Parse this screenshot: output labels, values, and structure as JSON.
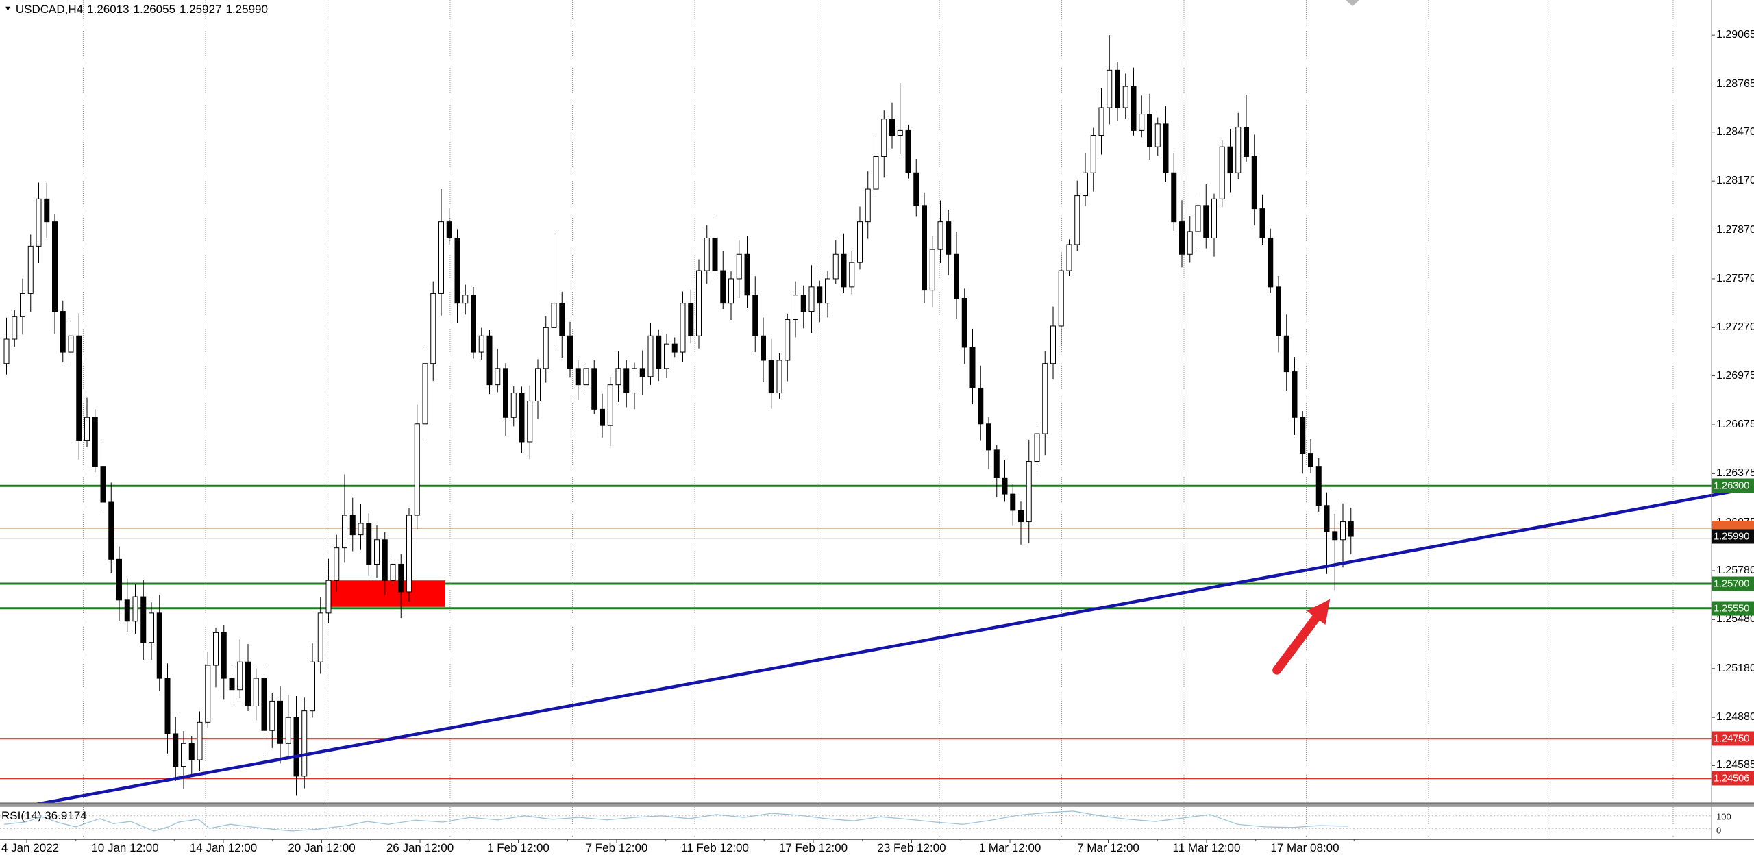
{
  "header": {
    "dropdown_icon": "▼",
    "symbol": "USDCAD,H4",
    "open": "1.26013",
    "high": "1.26055",
    "low": "1.25927",
    "close": "1.25990"
  },
  "colors": {
    "green_line": "#1e7d1e",
    "green_label_bg": "#267e26",
    "red_line": "#e03131",
    "red_label_bg": "#e12b2b",
    "black_label_bg": "#0a0a0a",
    "ask_label_bg": "#e8632a",
    "rect": "#fe0000",
    "trendline": "#1414a8",
    "ask_line": "#e8824a",
    "bid_line": "#c9c9c9",
    "arrow": "#e8252a",
    "rsi_line": "#9dc3d9",
    "grid": "#999999",
    "separator": "#9a9a9a",
    "shift_marker": "#b9b9b9",
    "candle_up_fill": "#ffffff",
    "candle_down_fill": "#000000",
    "candle_stroke": "#000000"
  },
  "price_axis": {
    "ticks": [
      "1.29065",
      "1.28765",
      "1.28470",
      "1.28170",
      "1.27870",
      "1.27570",
      "1.27270",
      "1.26975",
      "1.26675",
      "1.26375",
      "1.26075",
      "1.25780",
      "1.25480",
      "1.25180",
      "1.24880",
      "1.24585"
    ]
  },
  "time_axis": {
    "labels": [
      "4 Jan 2022",
      "10 Jan 12:00",
      "14 Jan 12:00",
      "20 Jan 12:00",
      "26 Jan 12:00",
      "1 Feb 12:00",
      "7 Feb 12:00",
      "11 Feb 12:00",
      "17 Feb 12:00",
      "23 Feb 12:00",
      "1 Mar 12:00",
      "7 Mar 12:00",
      "11 Mar 12:00",
      "17 Mar 08:00"
    ]
  },
  "axis_badges": [
    {
      "text": "1.26300",
      "price": 1.263,
      "bg": "green"
    },
    {
      "text": "1.25990",
      "price": 1.2599,
      "bg": "black"
    },
    {
      "text": "1.25700",
      "price": 1.257,
      "bg": "green"
    },
    {
      "text": "1.25550",
      "price": 1.2555,
      "bg": "green"
    },
    {
      "text": "1.24750",
      "price": 1.2475,
      "bg": "red"
    },
    {
      "text": "1.24506",
      "price": 1.24506,
      "bg": "red"
    }
  ],
  "ask_badge": {
    "price": 1.2604
  },
  "rsi": {
    "label": "RSI(14) 36.9174",
    "value": 36.9174,
    "scale_top": "100",
    "scale_bottom": "0",
    "levels": [
      70,
      30
    ],
    "points": [
      [
        0,
        43
      ],
      [
        2.6,
        50
      ],
      [
        4.7,
        67
      ],
      [
        6.8,
        48
      ],
      [
        8.9,
        35
      ],
      [
        11.9,
        61
      ],
      [
        13.6,
        45
      ],
      [
        15.7,
        52
      ],
      [
        18.6,
        22
      ],
      [
        20.4,
        35
      ],
      [
        21.7,
        50
      ],
      [
        24.1,
        59
      ],
      [
        25.5,
        30
      ],
      [
        28.1,
        43
      ],
      [
        30.6,
        35
      ],
      [
        33.2,
        28
      ],
      [
        35.7,
        22
      ],
      [
        39.1,
        28
      ],
      [
        42.6,
        39
      ],
      [
        45.1,
        52
      ],
      [
        47.7,
        43
      ],
      [
        51.1,
        56
      ],
      [
        54.5,
        50
      ],
      [
        57.9,
        65
      ],
      [
        61.3,
        57
      ],
      [
        64.7,
        70
      ],
      [
        68.1,
        59
      ],
      [
        71.5,
        65
      ],
      [
        74.9,
        57
      ],
      [
        78.3,
        65
      ],
      [
        81.7,
        70
      ],
      [
        85.1,
        61
      ],
      [
        88.5,
        74
      ],
      [
        91.9,
        65
      ],
      [
        95.3,
        78
      ],
      [
        98.7,
        72
      ],
      [
        102.1,
        61
      ],
      [
        105.5,
        54
      ],
      [
        108.9,
        67
      ],
      [
        112.3,
        59
      ],
      [
        115.7,
        50
      ],
      [
        119.1,
        43
      ],
      [
        122.6,
        56
      ],
      [
        126,
        72
      ],
      [
        129.4,
        80
      ],
      [
        132.8,
        85
      ],
      [
        136.2,
        70
      ],
      [
        139.6,
        59
      ],
      [
        143,
        52
      ],
      [
        146.4,
        63
      ],
      [
        149.8,
        74
      ],
      [
        153.2,
        43
      ],
      [
        156.6,
        35
      ],
      [
        160,
        33
      ],
      [
        163.4,
        39
      ],
      [
        167,
        37
      ]
    ]
  },
  "chart_data": {
    "type": "candlestick",
    "title": "USDCAD,H4",
    "symbol": "USDCAD",
    "timeframe": "H4",
    "current_ohlc": {
      "open": 1.26013,
      "high": 1.26055,
      "low": 1.25927,
      "close": 1.2599
    },
    "x_tick_labels": [
      "4 Jan 2022",
      "10 Jan 12:00",
      "14 Jan 12:00",
      "20 Jan 12:00",
      "26 Jan 12:00",
      "1 Feb 12:00",
      "7 Feb 12:00",
      "11 Feb 12:00",
      "17 Feb 12:00",
      "23 Feb 12:00",
      "1 Mar 12:00",
      "7 Mar 12:00",
      "11 Mar 12:00",
      "17 Mar 08:00"
    ],
    "y_axis_ticks": [
      1.29065,
      1.28765,
      1.2847,
      1.2817,
      1.2787,
      1.2757,
      1.2727,
      1.26975,
      1.26675,
      1.26375,
      1.26075,
      1.2578,
      1.2548,
      1.2518,
      1.2488,
      1.24585
    ],
    "ylim": [
      1.2433,
      1.2925
    ],
    "grid": "vertical-dotted",
    "horizontal_levels": [
      {
        "price": 1.263,
        "color": "green",
        "width": 3
      },
      {
        "price": 1.257,
        "color": "green",
        "width": 3
      },
      {
        "price": 1.2555,
        "color": "green",
        "width": 3
      },
      {
        "price": 1.2475,
        "color": "red",
        "width": 2
      },
      {
        "price": 1.24506,
        "color": "red",
        "width": 2
      }
    ],
    "ask_line_price": 1.2604,
    "bid_line_price": 1.2599,
    "trendline": {
      "shape": "rising-support",
      "start": {
        "x_frac": 0.0195,
        "price": 1.24345
      },
      "end": {
        "x_frac": 1.0,
        "price": 1.2629
      }
    },
    "supply_zone_rect": {
      "bar_start": 40.6,
      "bar_end": 54.8,
      "price_top": 1.2572,
      "price_bottom": 1.25558
    },
    "arrow_annotation": {
      "tail": {
        "bar": 158.1,
        "price": 1.2517
      },
      "head": {
        "bar": 164.7,
        "price": 1.25605
      }
    },
    "shift_marker_bar": 167.5,
    "candles": {
      "count": 168,
      "first_open": 1.2705,
      "last_close": 1.2599,
      "close_waypoints": [
        [
          0,
          1.272
        ],
        [
          2,
          1.2748
        ],
        [
          4,
          1.2806
        ],
        [
          5,
          1.2792
        ],
        [
          6,
          1.2737
        ],
        [
          7,
          1.2712
        ],
        [
          8,
          1.2722
        ],
        [
          9,
          1.2658
        ],
        [
          10,
          1.2672
        ],
        [
          11,
          1.2642
        ],
        [
          12,
          1.262
        ],
        [
          13,
          1.2585
        ],
        [
          14,
          1.256
        ],
        [
          15,
          1.2547
        ],
        [
          16,
          1.2562
        ],
        [
          17,
          1.2534
        ],
        [
          18,
          1.2552
        ],
        [
          19,
          1.2512
        ],
        [
          20,
          1.2478
        ],
        [
          21,
          1.2458
        ],
        [
          22,
          1.2472
        ],
        [
          23,
          1.2462
        ],
        [
          24,
          1.2485
        ],
        [
          25,
          1.252
        ],
        [
          26,
          1.254
        ],
        [
          27,
          1.2512
        ],
        [
          28,
          1.2505
        ],
        [
          29,
          1.2522
        ],
        [
          30,
          1.2495
        ],
        [
          31,
          1.2512
        ],
        [
          32,
          1.248
        ],
        [
          33,
          1.2498
        ],
        [
          34,
          1.2472
        ],
        [
          35,
          1.2488
        ],
        [
          36,
          1.2452
        ],
        [
          37,
          1.2492
        ],
        [
          38,
          1.2522
        ],
        [
          39,
          1.2552
        ],
        [
          40,
          1.2572
        ],
        [
          41,
          1.2592
        ],
        [
          42,
          1.2612
        ],
        [
          43,
          1.26
        ],
        [
          44,
          1.2607
        ],
        [
          45,
          1.2582
        ],
        [
          46,
          1.2597
        ],
        [
          47,
          1.2572
        ],
        [
          48,
          1.2582
        ],
        [
          49,
          1.2565
        ],
        [
          50,
          1.2612
        ],
        [
          51,
          1.2668
        ],
        [
          52,
          1.2705
        ],
        [
          53,
          1.2748
        ],
        [
          54,
          1.2792
        ],
        [
          55,
          1.2782
        ],
        [
          56,
          1.2742
        ],
        [
          57,
          1.2747
        ],
        [
          58,
          1.2712
        ],
        [
          59,
          1.2722
        ],
        [
          60,
          1.2692
        ],
        [
          61,
          1.2702
        ],
        [
          62,
          1.2672
        ],
        [
          63,
          1.2687
        ],
        [
          64,
          1.2657
        ],
        [
          65,
          1.2682
        ],
        [
          66,
          1.2702
        ],
        [
          67,
          1.2727
        ],
        [
          68,
          1.2742
        ],
        [
          69,
          1.2722
        ],
        [
          70,
          1.2702
        ],
        [
          71,
          1.2692
        ],
        [
          72,
          1.2702
        ],
        [
          73,
          1.2677
        ],
        [
          74,
          1.2667
        ],
        [
          75,
          1.2692
        ],
        [
          76,
          1.2702
        ],
        [
          77,
          1.2687
        ],
        [
          78,
          1.2702
        ],
        [
          79,
          1.2697
        ],
        [
          80,
          1.2722
        ],
        [
          81,
          1.2702
        ],
        [
          82,
          1.2717
        ],
        [
          83,
          1.2712
        ],
        [
          84,
          1.2742
        ],
        [
          85,
          1.2722
        ],
        [
          86,
          1.2762
        ],
        [
          87,
          1.2782
        ],
        [
          88,
          1.2762
        ],
        [
          89,
          1.2742
        ],
        [
          90,
          1.2757
        ],
        [
          91,
          1.2772
        ],
        [
          92,
          1.2747
        ],
        [
          93,
          1.2722
        ],
        [
          94,
          1.2707
        ],
        [
          95,
          1.2687
        ],
        [
          96,
          1.2707
        ],
        [
          97,
          1.2732
        ],
        [
          98,
          1.2747
        ],
        [
          99,
          1.2737
        ],
        [
          100,
          1.2752
        ],
        [
          101,
          1.2742
        ],
        [
          102,
          1.2757
        ],
        [
          103,
          1.2772
        ],
        [
          104,
          1.2752
        ],
        [
          105,
          1.2767
        ],
        [
          106,
          1.2792
        ],
        [
          107,
          1.2812
        ],
        [
          108,
          1.2832
        ],
        [
          109,
          1.2855
        ],
        [
          110,
          1.2845
        ],
        [
          111,
          1.2848
        ],
        [
          112,
          1.2822
        ],
        [
          113,
          1.2802
        ],
        [
          114,
          1.275
        ],
        [
          115,
          1.2775
        ],
        [
          116,
          1.2792
        ],
        [
          117,
          1.2772
        ],
        [
          118,
          1.2745
        ],
        [
          119,
          1.2715
        ],
        [
          120,
          1.269
        ],
        [
          121,
          1.2668
        ],
        [
          122,
          1.2652
        ],
        [
          123,
          1.2635
        ],
        [
          124,
          1.2625
        ],
        [
          125,
          1.2615
        ],
        [
          126,
          1.2608
        ],
        [
          127,
          1.2645
        ],
        [
          128,
          1.2662
        ],
        [
          129,
          1.2705
        ],
        [
          130,
          1.2728
        ],
        [
          131,
          1.2762
        ],
        [
          132,
          1.2778
        ],
        [
          133,
          1.2808
        ],
        [
          134,
          1.2822
        ],
        [
          135,
          1.2845
        ],
        [
          136,
          1.2862
        ],
        [
          137,
          1.2885
        ],
        [
          138,
          1.2862
        ],
        [
          139,
          1.2875
        ],
        [
          140,
          1.2848
        ],
        [
          141,
          1.2858
        ],
        [
          142,
          1.2838
        ],
        [
          143,
          1.2852
        ],
        [
          144,
          1.2822
        ],
        [
          145,
          1.2792
        ],
        [
          146,
          1.2772
        ],
        [
          147,
          1.2786
        ],
        [
          148,
          1.2802
        ],
        [
          149,
          1.2782
        ],
        [
          150,
          1.2806
        ],
        [
          151,
          1.2838
        ],
        [
          152,
          1.2822
        ],
        [
          153,
          1.285
        ],
        [
          154,
          1.2832
        ],
        [
          155,
          1.28
        ],
        [
          156,
          1.2782
        ],
        [
          157,
          1.2752
        ],
        [
          158,
          1.2722
        ],
        [
          159,
          1.27
        ],
        [
          160,
          1.2672
        ],
        [
          161,
          1.265
        ],
        [
          162,
          1.2642
        ],
        [
          163,
          1.2618
        ],
        [
          164,
          1.2602
        ],
        [
          165,
          1.2597
        ],
        [
          166,
          1.2608
        ],
        [
          167,
          1.2599
        ]
      ],
      "wick_overrides": {
        "4": {
          "h": 1.2816
        },
        "21": {
          "l": 1.2449
        },
        "23": {
          "l": 1.2452
        },
        "36": {
          "l": 1.244
        },
        "42": {
          "h": 1.2637
        },
        "49": {
          "l": 1.2549
        },
        "54": {
          "h": 1.2812
        },
        "68": {
          "h": 1.2786
        },
        "111": {
          "h": 1.2877
        },
        "126": {
          "l": 1.2594
        },
        "137": {
          "h": 1.29065
        },
        "154": {
          "h": 1.287
        },
        "164": {
          "l": 1.2576
        },
        "165": {
          "l": 1.2566
        },
        "166": {
          "l": 1.258
        }
      }
    }
  }
}
